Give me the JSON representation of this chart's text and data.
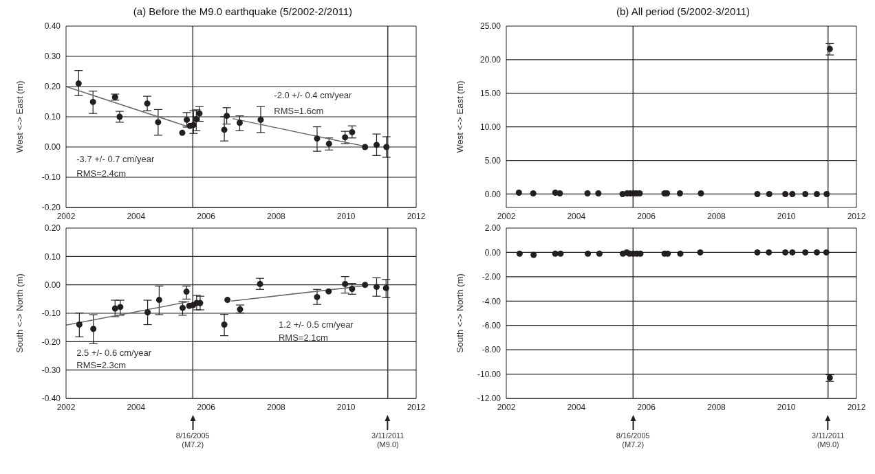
{
  "chart_data": [
    {
      "type": "scatter",
      "title": "(a) Before the M9.0 earthquake (5/2002-2/2011)",
      "ylabel": "West <-> East (m)",
      "xlim": [
        2002,
        2012
      ],
      "xticks": [
        2002,
        2004,
        2006,
        2008,
        2010,
        2012
      ],
      "ylim": [
        -0.2,
        0.4
      ],
      "yticks": [
        {
          "value": -0.2,
          "label": "-0.20"
        },
        {
          "value": -0.1,
          "label": "-0.10"
        },
        {
          "value": 0,
          "label": "0.00"
        },
        {
          "value": 0.1,
          "label": "0.10"
        },
        {
          "value": 0.2,
          "label": "0.20"
        },
        {
          "value": 0.3,
          "label": "0.30"
        },
        {
          "value": 0.4,
          "label": "0.40"
        }
      ],
      "grid": "y",
      "series": [
        {
          "marker": "circle",
          "color": "#231f20",
          "x": [
            2002.36,
            2002.77,
            2003.4,
            2003.53,
            2004.32,
            2004.63,
            2005.32,
            2005.45,
            2005.54,
            2005.64,
            2005.72,
            2005.81,
            2006.52,
            2006.59,
            2006.96,
            2007.56,
            2009.17,
            2009.51,
            2009.97,
            2010.17,
            2010.54,
            2010.87,
            2011.15
          ],
          "values": [
            0.21,
            0.149,
            0.165,
            0.1,
            0.144,
            0.082,
            0.047,
            0.09,
            0.07,
            0.073,
            0.092,
            0.111,
            0.057,
            0.103,
            0.08,
            0.09,
            0.028,
            0.011,
            0.032,
            0.049,
            0.0,
            0.007,
            0.0
          ],
          "errors": [
            [
              0.17,
              0.253
            ],
            [
              0.111,
              0.185
            ],
            [
              0.155,
              0.175
            ],
            [
              0.082,
              0.118
            ],
            [
              0.12,
              0.168
            ],
            [
              0.039,
              0.124
            ],
            null,
            [
              0.066,
              0.114
            ],
            null,
            [
              0.045,
              0.12
            ],
            [
              0.054,
              0.123
            ],
            [
              0.085,
              0.134
            ],
            [
              0.02,
              0.1
            ],
            [
              0.076,
              0.13
            ],
            [
              0.054,
              0.103
            ],
            [
              0.048,
              0.134
            ],
            [
              -0.014,
              0.067
            ],
            [
              -0.01,
              0.03
            ],
            [
              0.011,
              0.052
            ],
            [
              0.03,
              0.07
            ],
            null,
            [
              -0.028,
              0.043
            ],
            [
              -0.034,
              0.034
            ]
          ]
        },
        {
          "type": "line",
          "color": "#666666",
          "x": [
            2002,
            2005.47
          ],
          "values": [
            0.2,
            0.068
          ]
        },
        {
          "type": "line",
          "color": "#666666",
          "x": [
            2006.76,
            2010.55
          ],
          "values": [
            0.094,
            0.002
          ]
        }
      ],
      "ref_lines": [
        {
          "axis": "x",
          "value": 2005.62,
          "color": "#231f20"
        },
        {
          "axis": "x",
          "value": 2011.19,
          "color": "#231f20"
        }
      ],
      "annotations": [
        "-2.0 +/- 0.4 cm/year",
        "RMS=1.6cm",
        "-3.7 +/- 0.7 cm/year",
        "RMS=2.4cm"
      ]
    },
    {
      "type": "scatter",
      "title": "(b)  All period (5/2002-3/2011)",
      "ylabel": "West <-> East (m)",
      "xlim": [
        2002,
        2012
      ],
      "xticks": [
        2002,
        2004,
        2006,
        2008,
        2010,
        2012
      ],
      "ylim": [
        -2,
        25
      ],
      "yticks": [
        {
          "value": 0,
          "label": "0.00"
        },
        {
          "value": 5,
          "label": "5.00"
        },
        {
          "value": 10,
          "label": "10.00"
        },
        {
          "value": 15,
          "label": "15.00"
        },
        {
          "value": 20,
          "label": "20.00"
        },
        {
          "value": 25,
          "label": "25.00"
        }
      ],
      "grid": "y",
      "series": [
        {
          "marker": "circle",
          "color": "#231f20",
          "x": [
            2002.36,
            2002.77,
            2003.4,
            2003.53,
            2004.32,
            2004.63,
            2005.32,
            2005.45,
            2005.54,
            2005.64,
            2005.72,
            2005.81,
            2006.52,
            2006.59,
            2006.96,
            2007.56,
            2009.17,
            2009.51,
            2009.97,
            2010.17,
            2010.54,
            2010.87,
            2011.15,
            2011.24
          ],
          "values": [
            0.2,
            0.1,
            0.2,
            0.1,
            0.1,
            0.1,
            0,
            0.1,
            0.1,
            0.1,
            0.1,
            0.1,
            0.1,
            0.1,
            0.1,
            0.1,
            0,
            0,
            0,
            0,
            0,
            0,
            0,
            21.6
          ],
          "errors": [
            null,
            null,
            null,
            null,
            null,
            null,
            null,
            null,
            null,
            null,
            null,
            null,
            null,
            null,
            null,
            null,
            null,
            null,
            null,
            null,
            null,
            null,
            null,
            [
              20.7,
              22.4
            ]
          ]
        }
      ],
      "ref_lines": [
        {
          "axis": "x",
          "value": 2005.62,
          "color": "#231f20"
        },
        {
          "axis": "x",
          "value": 2011.19,
          "color": "#231f20"
        }
      ]
    },
    {
      "type": "scatter",
      "ylabel": "South <-> North (m)",
      "xlim": [
        2002,
        2012
      ],
      "xticks": [
        2002,
        2004,
        2006,
        2008,
        2010,
        2012
      ],
      "ylim": [
        -0.4,
        0.2
      ],
      "yticks": [
        {
          "value": -0.4,
          "label": "-0.40"
        },
        {
          "value": -0.3,
          "label": "-0.30"
        },
        {
          "value": -0.2,
          "label": "-0.20"
        },
        {
          "value": -0.1,
          "label": "-0.10"
        },
        {
          "value": 0,
          "label": "0.00"
        },
        {
          "value": 0.1,
          "label": "0.10"
        },
        {
          "value": 0.2,
          "label": "0.20"
        }
      ],
      "grid": "y",
      "series": [
        {
          "marker": "circle",
          "color": "#231f20",
          "x": [
            2002.38,
            2002.78,
            2003.4,
            2003.55,
            2004.33,
            2004.66,
            2005.33,
            2005.44,
            2005.52,
            2005.63,
            2005.73,
            2005.83,
            2006.52,
            2006.61,
            2006.97,
            2007.54,
            2009.17,
            2009.5,
            2009.97,
            2010.17,
            2010.54,
            2010.87,
            2011.14
          ],
          "values": [
            -0.14,
            -0.155,
            -0.083,
            -0.078,
            -0.097,
            -0.053,
            -0.081,
            -0.024,
            -0.074,
            -0.071,
            -0.064,
            -0.064,
            -0.14,
            -0.053,
            -0.086,
            0.003,
            -0.043,
            -0.023,
            0.003,
            -0.014,
            0.0,
            -0.007,
            -0.011
          ],
          "errors": [
            [
              -0.183,
              -0.099
            ],
            [
              -0.207,
              -0.105
            ],
            [
              -0.112,
              -0.054
            ],
            [
              -0.107,
              -0.054
            ],
            [
              -0.14,
              -0.054
            ],
            [
              -0.105,
              -0.004
            ],
            [
              -0.107,
              -0.059
            ],
            [
              -0.05,
              -0.004
            ],
            null,
            null,
            [
              -0.088,
              -0.037
            ],
            [
              -0.088,
              -0.04
            ],
            [
              -0.179,
              -0.104
            ],
            null,
            [
              -0.099,
              -0.071
            ],
            [
              -0.016,
              0.023
            ],
            [
              -0.069,
              -0.016
            ],
            null,
            [
              -0.029,
              0.029
            ],
            [
              -0.033,
              0.005
            ],
            null,
            [
              -0.04,
              0.025
            ],
            [
              -0.045,
              0.019
            ]
          ]
        },
        {
          "type": "line",
          "color": "#666666",
          "x": [
            2002,
            2005.52
          ],
          "values": [
            -0.142,
            -0.059
          ]
        },
        {
          "type": "line",
          "color": "#666666",
          "x": [
            2006.72,
            2010.63
          ],
          "values": [
            -0.057,
            -0.002
          ]
        }
      ],
      "ref_lines": [
        {
          "axis": "x",
          "value": 2005.62,
          "color": "#231f20"
        },
        {
          "axis": "x",
          "value": 2011.19,
          "color": "#231f20"
        }
      ],
      "annotations": [
        "1.2 +/- 0.5 cm/year",
        "RMS=2.1cm",
        "2.5 +/- 0.6 cm/year",
        "RMS=2.3cm",
        "8/16/2005\n(M7.2)",
        "3/11/2011\n(M9.0)"
      ]
    },
    {
      "type": "scatter",
      "ylabel": "South <-> North (m)",
      "xlim": [
        2002,
        2012
      ],
      "xticks": [
        2002,
        2004,
        2006,
        2008,
        2010,
        2012
      ],
      "ylim": [
        -12,
        2
      ],
      "yticks": [
        {
          "value": -12,
          "label": "-12.00"
        },
        {
          "value": -10,
          "label": "-10.00"
        },
        {
          "value": -8,
          "label": "-8.00"
        },
        {
          "value": -6,
          "label": "-6.00"
        },
        {
          "value": -4,
          "label": "-4.00"
        },
        {
          "value": -2,
          "label": "-2.00"
        },
        {
          "value": 0,
          "label": "0.00"
        },
        {
          "value": 2,
          "label": "2.00"
        }
      ],
      "grid": "y",
      "series": [
        {
          "marker": "circle",
          "color": "#231f20",
          "x": [
            2002.38,
            2002.78,
            2003.4,
            2003.55,
            2004.33,
            2004.66,
            2005.33,
            2005.44,
            2005.52,
            2005.63,
            2005.73,
            2005.83,
            2006.52,
            2006.61,
            2006.97,
            2007.54,
            2009.17,
            2009.5,
            2009.97,
            2010.17,
            2010.54,
            2010.87,
            2011.14,
            2011.24
          ],
          "values": [
            -0.1,
            -0.2,
            -0.1,
            -0.1,
            -0.1,
            -0.1,
            -0.1,
            0,
            -0.1,
            -0.1,
            -0.1,
            -0.1,
            -0.1,
            -0.1,
            -0.1,
            0,
            0,
            0,
            0,
            0,
            0,
            0,
            0,
            -10.3
          ],
          "errors": [
            null,
            null,
            null,
            null,
            null,
            null,
            null,
            null,
            null,
            null,
            null,
            null,
            null,
            null,
            null,
            null,
            null,
            null,
            null,
            null,
            null,
            null,
            null,
            [
              -10.6,
              -10.05
            ]
          ]
        }
      ],
      "ref_lines": [
        {
          "axis": "x",
          "value": 2005.62,
          "color": "#231f20"
        },
        {
          "axis": "x",
          "value": 2011.19,
          "color": "#231f20"
        }
      ],
      "annotations": [
        "8/16/2005\n(M7.2)",
        "3/11/2011\n(M9.0)"
      ]
    }
  ]
}
